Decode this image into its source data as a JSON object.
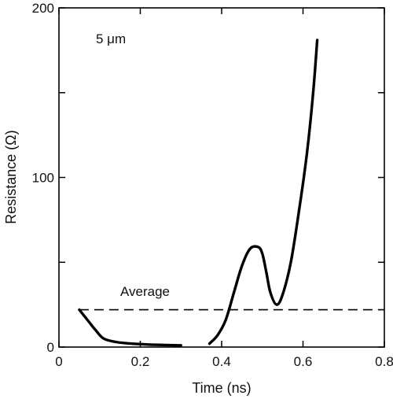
{
  "chart_data": {
    "type": "line",
    "title": "",
    "xlabel": "Time (ns)",
    "ylabel": "Resistance (Ω)",
    "xlim": [
      0,
      0.8
    ],
    "ylim": [
      0,
      200
    ],
    "x_ticks": [
      0,
      0.2,
      0.4,
      0.6,
      0.8
    ],
    "x_tick_labels": [
      "0",
      "0.2",
      "0.4",
      "0.6",
      "0.8"
    ],
    "y_ticks": [
      0,
      50,
      100,
      150,
      200
    ],
    "y_tick_labels": [
      "0",
      "",
      "100",
      "",
      "200"
    ],
    "grid": false,
    "annotations": {
      "corner_label": "5 μm",
      "average_label": "Average"
    },
    "average_value": 22,
    "series": [
      {
        "style": "solid",
        "color": "#000000",
        "x": [
          0.05,
          0.07,
          0.09,
          0.11,
          0.14,
          0.18,
          0.22,
          0.26,
          0.3
        ],
        "y": [
          22,
          16,
          10,
          5,
          3,
          2,
          1.5,
          1.2,
          1
        ]
      },
      {
        "style": "solid",
        "color": "#000000",
        "x": [
          0.37,
          0.39,
          0.41,
          0.43,
          0.45,
          0.47,
          0.49,
          0.5,
          0.51,
          0.52,
          0.535,
          0.55,
          0.57,
          0.59,
          0.61,
          0.625,
          0.635
        ],
        "y": [
          2,
          7,
          16,
          32,
          48,
          58,
          59,
          55,
          44,
          32,
          25,
          31,
          50,
          80,
          115,
          150,
          181
        ]
      }
    ]
  }
}
